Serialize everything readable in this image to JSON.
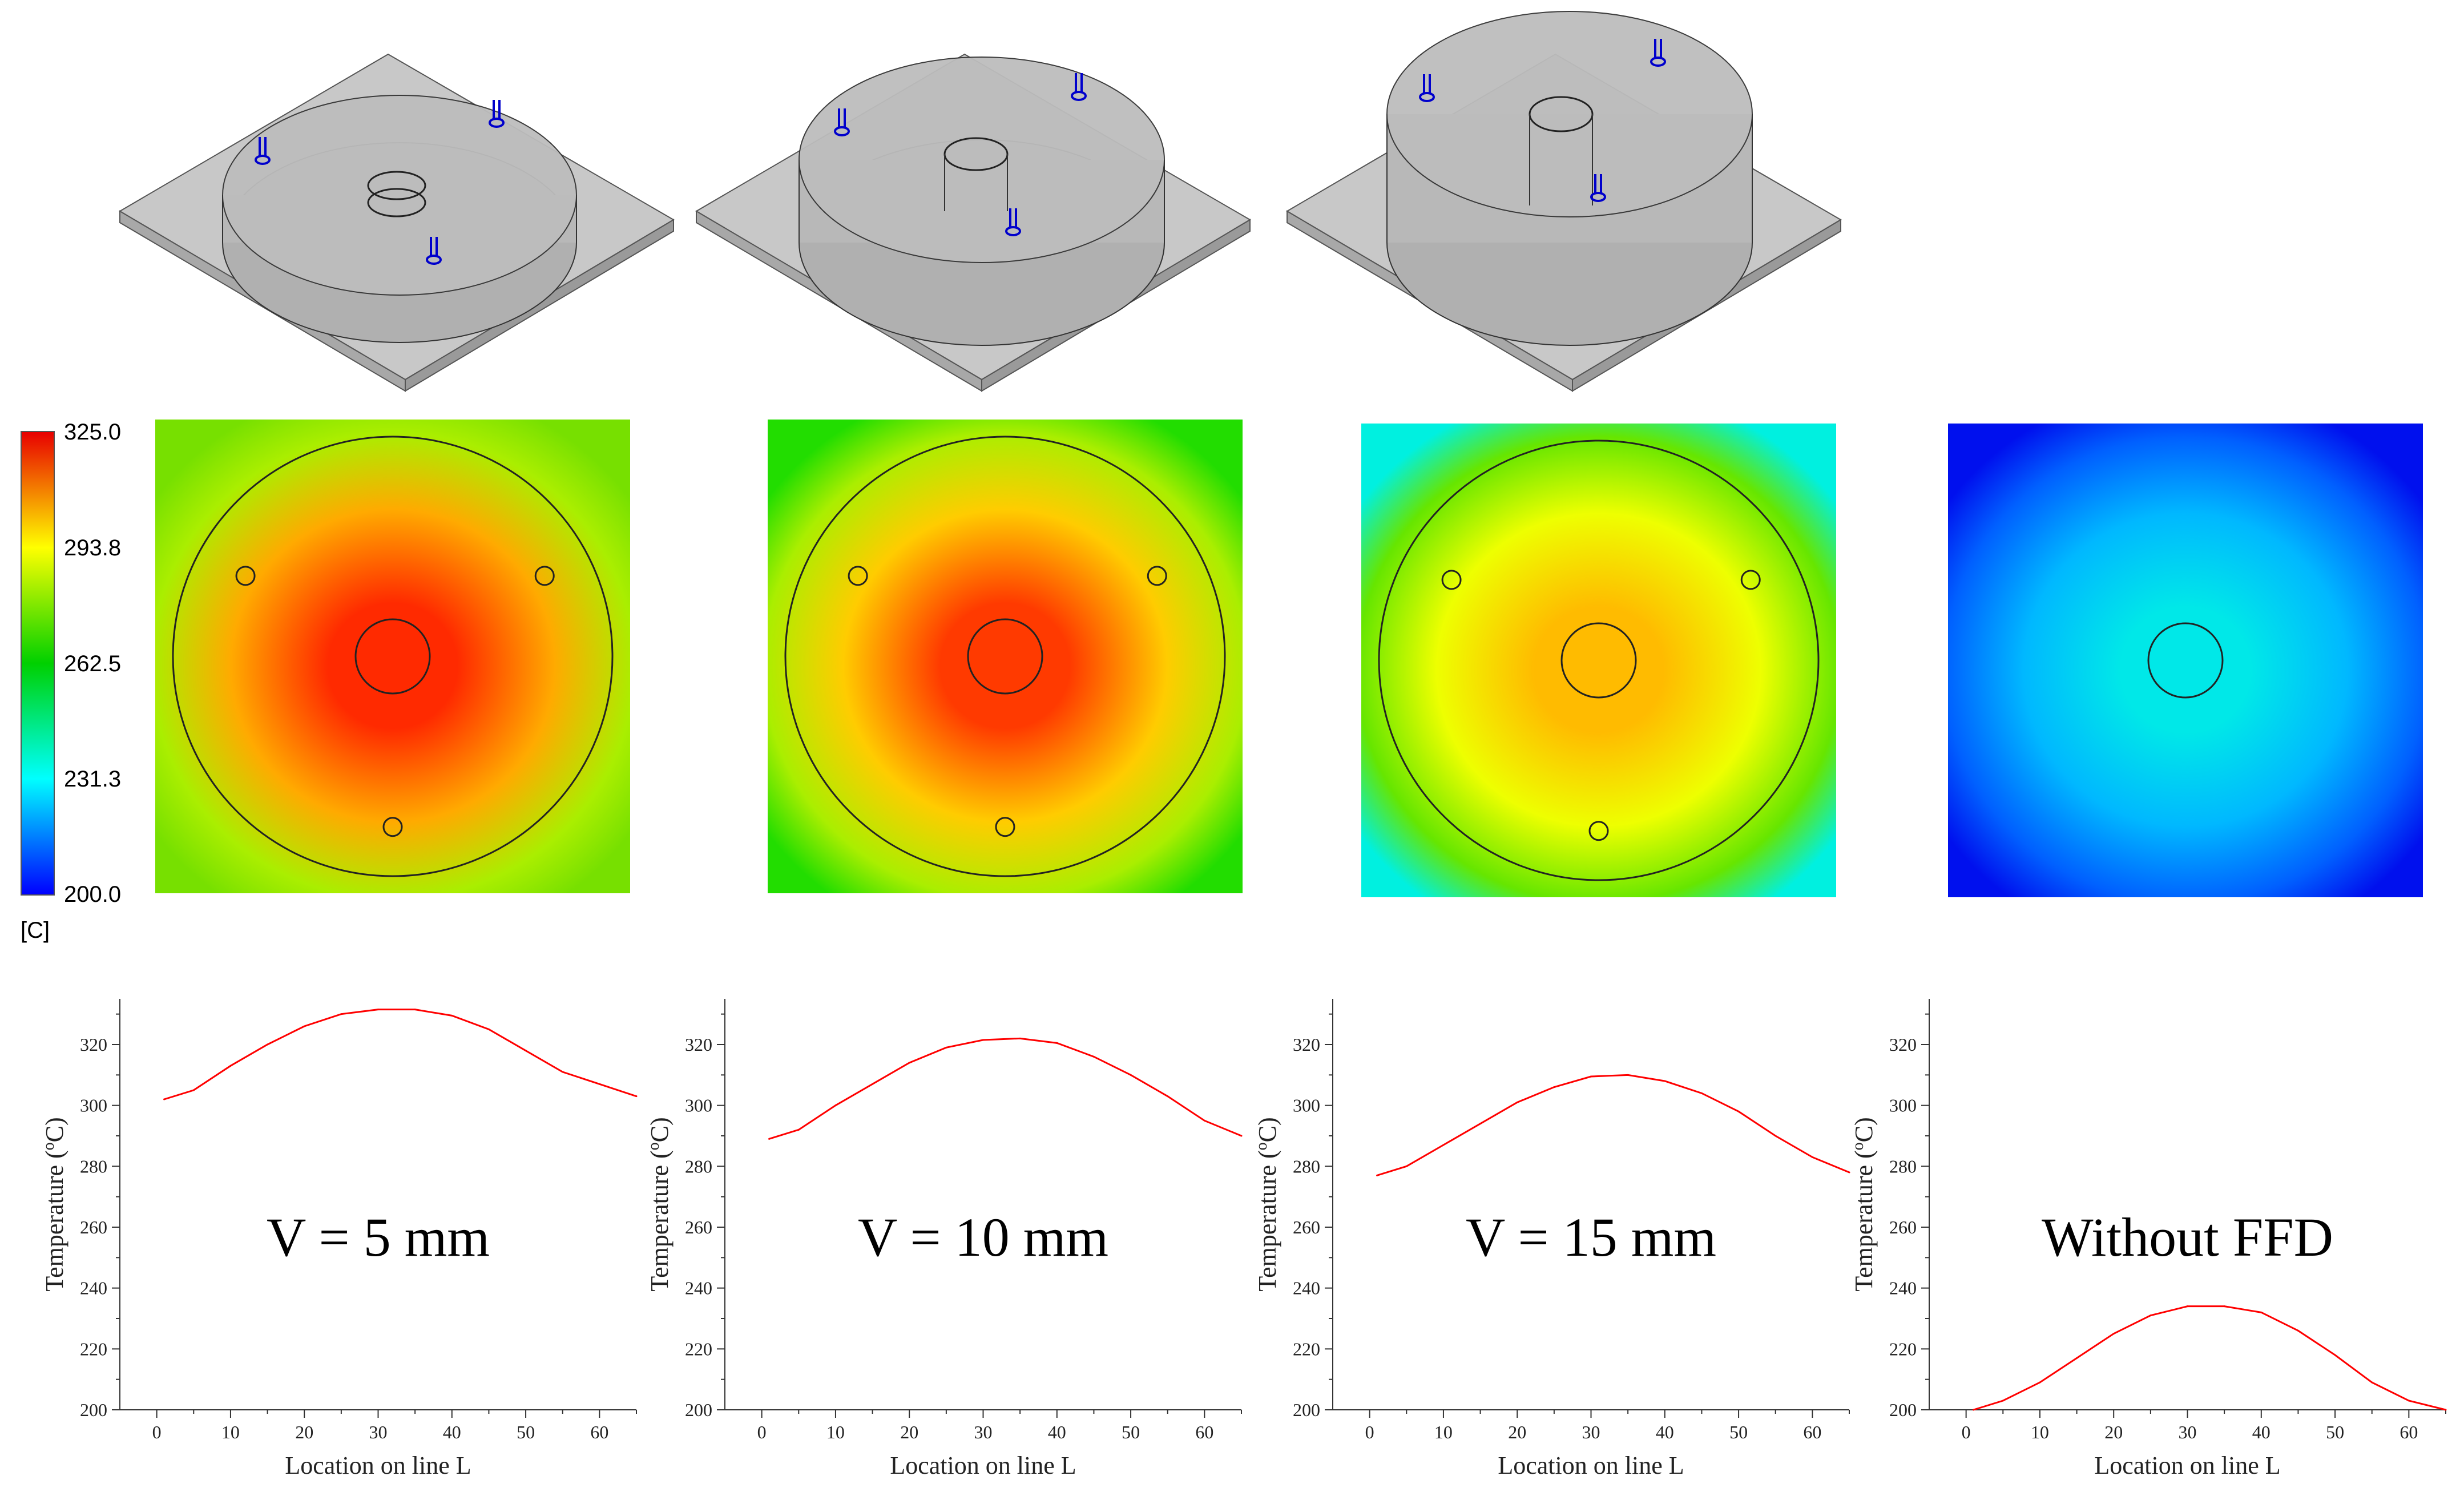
{
  "colorbar": {
    "labels": [
      "325.0",
      "293.8",
      "262.5",
      "231.3",
      "200.0"
    ],
    "unit": "[C]",
    "stops": [
      "#e80000",
      "#ffff00",
      "#00d000",
      "#00ffff",
      "#0000ff"
    ]
  },
  "heatmaps": [
    {
      "name": "v5",
      "center_color": "#ff2a00",
      "mid_color": "#ffaa00",
      "edge_color": "#aaee00",
      "corner_color": "#77e000",
      "outer_circle": true,
      "small_holes": 3
    },
    {
      "name": "v10",
      "center_color": "#ff3a00",
      "mid_color": "#ffcc00",
      "edge_color": "#aaee00",
      "corner_color": "#22dd00",
      "outer_circle": true,
      "small_holes": 3
    },
    {
      "name": "v15",
      "center_color": "#ffbb00",
      "mid_color": "#eeff00",
      "edge_color": "#66e600",
      "corner_color": "#00f0e0",
      "outer_circle": true,
      "small_holes": 3
    },
    {
      "name": "none",
      "center_color": "#00e8e8",
      "mid_color": "#00b8ff",
      "edge_color": "#0060ff",
      "corner_color": "#0010ee",
      "outer_circle": false,
      "small_holes": 0
    }
  ],
  "chart_data": [
    {
      "type": "line",
      "title": "V = 5 mm",
      "xlabel": "Location on line L",
      "ylabel": "Temperature (°C)",
      "ylabel_main": "Temperature (",
      "ylabel_deg": "o",
      "ylabel_unit": "C)",
      "xlim": [
        -5,
        65
      ],
      "ylim": [
        200,
        335
      ],
      "xticks": [
        0,
        10,
        20,
        30,
        40,
        50,
        60
      ],
      "yticks": [
        200,
        220,
        240,
        260,
        280,
        300,
        320
      ],
      "series": [
        {
          "name": "V = 5 mm",
          "color": "#ff0000",
          "x": [
            1,
            5,
            10,
            15,
            20,
            25,
            30,
            35,
            40,
            45,
            50,
            55,
            60,
            65
          ],
          "y": [
            302,
            305,
            313,
            320,
            326,
            330,
            331.5,
            331.5,
            329.5,
            325,
            318,
            311,
            307,
            303
          ]
        }
      ]
    },
    {
      "type": "line",
      "title": "V = 10 mm",
      "xlabel": "Location on line L",
      "ylabel": "Temperature (°C)",
      "ylabel_main": "Temperature (",
      "ylabel_deg": "o",
      "ylabel_unit": "C)",
      "xlim": [
        -5,
        65
      ],
      "ylim": [
        200,
        335
      ],
      "xticks": [
        0,
        10,
        20,
        30,
        40,
        50,
        60
      ],
      "yticks": [
        200,
        220,
        240,
        260,
        280,
        300,
        320
      ],
      "series": [
        {
          "name": "V = 10 mm",
          "color": "#ff0000",
          "x": [
            1,
            5,
            10,
            15,
            20,
            25,
            30,
            35,
            40,
            45,
            50,
            55,
            60,
            65
          ],
          "y": [
            289,
            292,
            300,
            307,
            314,
            319,
            321.5,
            322,
            320.5,
            316,
            310,
            303,
            295,
            290
          ]
        }
      ]
    },
    {
      "type": "line",
      "title": "V = 15 mm",
      "xlabel": "Location on line L",
      "ylabel": "Temperature (°C)",
      "ylabel_main": "Temperature (",
      "ylabel_deg": "o",
      "ylabel_unit": "C)",
      "xlim": [
        -5,
        65
      ],
      "ylim": [
        200,
        335
      ],
      "xticks": [
        0,
        10,
        20,
        30,
        40,
        50,
        60
      ],
      "yticks": [
        200,
        220,
        240,
        260,
        280,
        300,
        320
      ],
      "series": [
        {
          "name": "V = 15 mm",
          "color": "#ff0000",
          "x": [
            1,
            5,
            10,
            15,
            20,
            25,
            30,
            35,
            40,
            45,
            50,
            55,
            60,
            65
          ],
          "y": [
            277,
            280,
            287,
            294,
            301,
            306,
            309.5,
            310,
            308,
            304,
            298,
            290,
            283,
            278
          ]
        }
      ]
    },
    {
      "type": "line",
      "title": "Without FFD",
      "xlabel": "Location on line L",
      "ylabel": "Temperature (°C)",
      "ylabel_main": "Temperature (",
      "ylabel_deg": "o",
      "ylabel_unit": "C)",
      "xlim": [
        -5,
        65
      ],
      "ylim": [
        200,
        335
      ],
      "xticks": [
        0,
        10,
        20,
        30,
        40,
        50,
        60
      ],
      "yticks": [
        200,
        220,
        240,
        260,
        280,
        300,
        320
      ],
      "series": [
        {
          "name": "Without FFD",
          "color": "#ff0000",
          "x": [
            1,
            5,
            10,
            15,
            20,
            25,
            30,
            35,
            40,
            45,
            50,
            55,
            60,
            65
          ],
          "y": [
            200,
            203,
            209,
            217,
            225,
            231,
            234,
            234,
            232,
            226,
            218,
            209,
            203,
            200
          ]
        }
      ]
    }
  ]
}
